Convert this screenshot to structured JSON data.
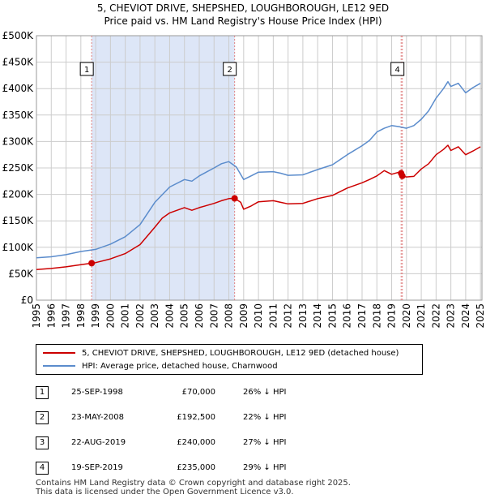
{
  "chart_data": {
    "type": "line",
    "title_line1": "5, CHEVIOT DRIVE, SHEPSHED, LOUGHBOROUGH, LE12 9ED",
    "title_line2": "Price paid vs. HM Land Registry's House Price Index (HPI)",
    "xlim": [
      1995,
      2025.1
    ],
    "ylim": [
      0,
      500000
    ],
    "y_ticks": [
      0,
      50000,
      100000,
      150000,
      200000,
      250000,
      300000,
      350000,
      400000,
      450000,
      500000
    ],
    "y_tick_labels": [
      "£0",
      "£50K",
      "£100K",
      "£150K",
      "£200K",
      "£250K",
      "£300K",
      "£350K",
      "£400K",
      "£450K",
      "£500K"
    ],
    "x_ticks": [
      1995,
      1996,
      1997,
      1998,
      1999,
      2000,
      2001,
      2002,
      2003,
      2004,
      2005,
      2006,
      2007,
      2008,
      2009,
      2010,
      2011,
      2012,
      2013,
      2014,
      2015,
      2016,
      2017,
      2018,
      2019,
      2020,
      2021,
      2022,
      2023,
      2024,
      2025
    ],
    "shaded_region": [
      1998.73,
      2008.39
    ],
    "series": [
      {
        "name": "5, CHEVIOT DRIVE, SHEPSHED, LOUGHBOROUGH, LE12 9ED (detached house)",
        "color": "#cc0000",
        "points": [
          [
            1995,
            58000
          ],
          [
            1996,
            60000
          ],
          [
            1997,
            63000
          ],
          [
            1998,
            67000
          ],
          [
            1998.73,
            70000
          ],
          [
            1999,
            71000
          ],
          [
            2000,
            78000
          ],
          [
            2001,
            88000
          ],
          [
            2002,
            105000
          ],
          [
            2003,
            138000
          ],
          [
            2003.5,
            155000
          ],
          [
            2004,
            165000
          ],
          [
            2005,
            175000
          ],
          [
            2005.5,
            170000
          ],
          [
            2006,
            175000
          ],
          [
            2007,
            183000
          ],
          [
            2007.5,
            188000
          ],
          [
            2008,
            192000
          ],
          [
            2008.39,
            192500
          ],
          [
            2008.8,
            185000
          ],
          [
            2009,
            172000
          ],
          [
            2009.5,
            178000
          ],
          [
            2010,
            186000
          ],
          [
            2011,
            188000
          ],
          [
            2011.5,
            185000
          ],
          [
            2012,
            182000
          ],
          [
            2013,
            183000
          ],
          [
            2014,
            192000
          ],
          [
            2015,
            198000
          ],
          [
            2016,
            212000
          ],
          [
            2017,
            222000
          ],
          [
            2017.5,
            228000
          ],
          [
            2018,
            235000
          ],
          [
            2018.5,
            245000
          ],
          [
            2019,
            238000
          ],
          [
            2019.5,
            242000
          ],
          [
            2019.64,
            240000
          ],
          [
            2019.72,
            235000
          ],
          [
            2020,
            233000
          ],
          [
            2020.5,
            234000
          ],
          [
            2021,
            248000
          ],
          [
            2021.5,
            258000
          ],
          [
            2022,
            275000
          ],
          [
            2022.5,
            285000
          ],
          [
            2022.8,
            293000
          ],
          [
            2023,
            283000
          ],
          [
            2023.5,
            290000
          ],
          [
            2024,
            275000
          ],
          [
            2024.5,
            282000
          ],
          [
            2025,
            290000
          ]
        ]
      },
      {
        "name": "HPI: Average price, detached house, Charnwood",
        "color": "#5b8ccc",
        "points": [
          [
            1995,
            80000
          ],
          [
            1996,
            82000
          ],
          [
            1997,
            86000
          ],
          [
            1998,
            92000
          ],
          [
            1999,
            96000
          ],
          [
            2000,
            106000
          ],
          [
            2001,
            120000
          ],
          [
            2002,
            143000
          ],
          [
            2003,
            185000
          ],
          [
            2004,
            214000
          ],
          [
            2005,
            228000
          ],
          [
            2005.5,
            225000
          ],
          [
            2006,
            235000
          ],
          [
            2007,
            250000
          ],
          [
            2007.5,
            258000
          ],
          [
            2008,
            262000
          ],
          [
            2008.5,
            252000
          ],
          [
            2009,
            228000
          ],
          [
            2009.5,
            235000
          ],
          [
            2010,
            242000
          ],
          [
            2011,
            243000
          ],
          [
            2011.5,
            240000
          ],
          [
            2012,
            236000
          ],
          [
            2013,
            237000
          ],
          [
            2014,
            247000
          ],
          [
            2015,
            256000
          ],
          [
            2016,
            275000
          ],
          [
            2017,
            292000
          ],
          [
            2017.5,
            302000
          ],
          [
            2018,
            318000
          ],
          [
            2018.5,
            325000
          ],
          [
            2019,
            330000
          ],
          [
            2019.5,
            328000
          ],
          [
            2020,
            325000
          ],
          [
            2020.5,
            330000
          ],
          [
            2021,
            342000
          ],
          [
            2021.5,
            358000
          ],
          [
            2022,
            382000
          ],
          [
            2022.5,
            400000
          ],
          [
            2022.8,
            413000
          ],
          [
            2023,
            404000
          ],
          [
            2023.5,
            410000
          ],
          [
            2024,
            392000
          ],
          [
            2024.5,
            402000
          ],
          [
            2025,
            410000
          ]
        ]
      }
    ],
    "sale_markers": [
      {
        "label": "1",
        "x": 1998.73,
        "y": 70000
      },
      {
        "label": "2",
        "x": 2008.39,
        "y": 192500
      },
      {
        "label": "3",
        "x": 2019.64,
        "y": 240000
      },
      {
        "label": "4",
        "x": 2019.72,
        "y": 235000
      }
    ],
    "annotation_boxes": [
      {
        "label": "1",
        "x": 1998.73
      },
      {
        "label": "2",
        "x": 2008.39
      },
      {
        "label": "4",
        "x": 2019.72
      }
    ]
  },
  "legend": {
    "property_label": "5, CHEVIOT DRIVE, SHEPSHED, LOUGHBOROUGH, LE12 9ED (detached house)",
    "hpi_label": "HPI: Average price, detached house, Charnwood"
  },
  "sales": [
    {
      "num": "1",
      "date": "25-SEP-1998",
      "price": "£70,000",
      "hpi": "26% ↓ HPI"
    },
    {
      "num": "2",
      "date": "23-MAY-2008",
      "price": "£192,500",
      "hpi": "22% ↓ HPI"
    },
    {
      "num": "3",
      "date": "22-AUG-2019",
      "price": "£240,000",
      "hpi": "27% ↓ HPI"
    },
    {
      "num": "4",
      "date": "19-SEP-2019",
      "price": "£235,000",
      "hpi": "29% ↓ HPI"
    }
  ],
  "footer": {
    "line1": "Contains HM Land Registry data © Crown copyright and database right 2025.",
    "line2": "This data is licensed under the Open Government Licence v3.0."
  },
  "colors": {
    "property": "#cc0000",
    "hpi": "#5b8ccc",
    "shade": "#dde6f7",
    "grid": "#cccccc",
    "marker_line": "#e08080"
  }
}
